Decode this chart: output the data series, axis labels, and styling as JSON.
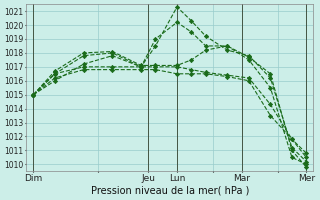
{
  "xlabel": "Pression niveau de la mer( hPa )",
  "background_color": "#cceee8",
  "grid_color": "#99cccc",
  "line_color": "#1a6b1a",
  "marker_color": "#1a6b1a",
  "ylim": [
    1009.5,
    1021.5
  ],
  "xlim": [
    0,
    20
  ],
  "yticks": [
    1010,
    1011,
    1012,
    1013,
    1014,
    1015,
    1016,
    1017,
    1018,
    1019,
    1020,
    1021
  ],
  "day_labels": [
    "Dim",
    "",
    "Jeu",
    "Lun",
    "",
    "Mar",
    "",
    "Mer"
  ],
  "day_positions": [
    0.5,
    5,
    8.5,
    10.5,
    13,
    15,
    17.5,
    19.5
  ],
  "vline_positions": [
    0.5,
    8.5,
    10.5,
    15,
    19.5
  ],
  "series": [
    {
      "x": [
        0.5,
        2,
        4,
        6,
        8,
        9,
        10.5,
        11.5,
        12.5,
        14,
        15.5,
        17,
        18.5,
        19.5
      ],
      "y": [
        1015.0,
        1016.0,
        1017.2,
        1017.8,
        1017.0,
        1018.5,
        1021.3,
        1020.3,
        1019.2,
        1018.2,
        1017.8,
        1016.2,
        1011.2,
        1010.2
      ]
    },
    {
      "x": [
        0.5,
        2,
        4,
        6,
        8,
        9,
        10.5,
        11.5,
        12.5,
        14,
        15.5,
        17,
        18.5,
        19.5
      ],
      "y": [
        1015.0,
        1016.5,
        1017.8,
        1018.0,
        1017.0,
        1019.0,
        1020.2,
        1019.5,
        1018.5,
        1018.5,
        1017.5,
        1015.5,
        1010.5,
        1010.0
      ]
    },
    {
      "x": [
        0.5,
        2,
        4,
        6,
        8,
        9,
        10.5,
        11.5,
        12.5,
        14,
        15.5,
        17,
        18.5,
        19.5
      ],
      "y": [
        1015.0,
        1016.7,
        1018.0,
        1018.1,
        1017.1,
        1017.1,
        1017.1,
        1017.5,
        1018.2,
        1018.5,
        1017.7,
        1016.5,
        1011.0,
        1009.8
      ]
    },
    {
      "x": [
        0.5,
        2,
        4,
        6,
        8,
        9,
        10.5,
        11.5,
        12.5,
        14,
        15.5,
        17,
        18.5,
        19.5
      ],
      "y": [
        1015.0,
        1016.5,
        1017.0,
        1017.0,
        1017.0,
        1017.0,
        1017.0,
        1016.8,
        1016.6,
        1016.4,
        1016.2,
        1014.3,
        1011.8,
        1010.5
      ]
    },
    {
      "x": [
        0.5,
        2,
        4,
        6,
        8,
        9,
        10.5,
        11.5,
        12.5,
        14,
        15.5,
        17,
        18.5,
        19.5
      ],
      "y": [
        1015.0,
        1016.2,
        1016.8,
        1016.8,
        1016.8,
        1016.8,
        1016.5,
        1016.5,
        1016.5,
        1016.3,
        1016.0,
        1013.5,
        1011.8,
        1010.8
      ]
    }
  ]
}
